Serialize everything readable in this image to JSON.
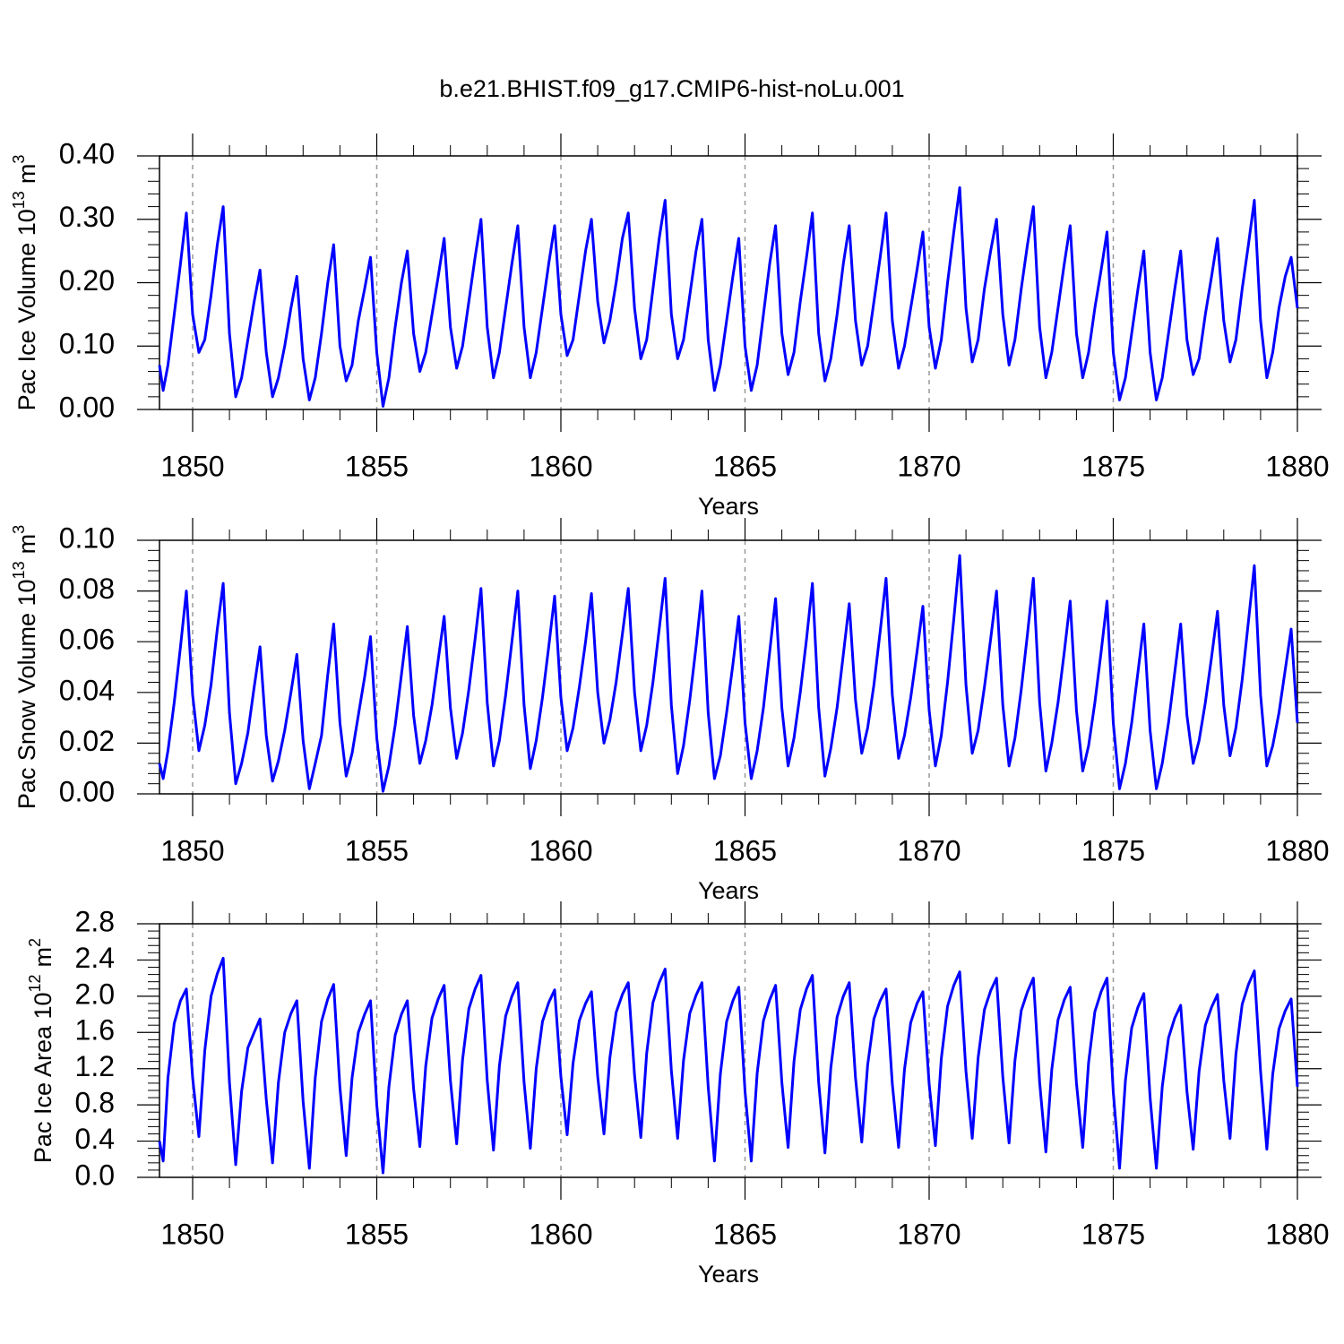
{
  "chart_data": [
    {
      "type": "line",
      "title": "b.e21.BHIST.f09_g17.CMIP6-hist-noLu.001",
      "ylabel": {
        "text": "Pac Ice Volume 10",
        "exp": "13",
        "unit": "m",
        "unit_exp": "3"
      },
      "xlabel": "Years",
      "color": "#0000ff",
      "x": [
        1849.1,
        1849.2,
        1849.33,
        1849.5,
        1849.67,
        1849.83,
        1850,
        1850.17,
        1850.33,
        1850.5,
        1850.67,
        1850.83,
        1851,
        1851.17,
        1851.33,
        1851.5,
        1851.67,
        1851.83,
        1852,
        1852.17,
        1852.33,
        1852.5,
        1852.67,
        1852.83,
        1853,
        1853.17,
        1853.33,
        1853.5,
        1853.67,
        1853.83,
        1854,
        1854.17,
        1854.33,
        1854.5,
        1854.67,
        1854.83,
        1855,
        1855.17,
        1855.33,
        1855.5,
        1855.67,
        1855.83,
        1856,
        1856.17,
        1856.33,
        1856.5,
        1856.67,
        1856.83,
        1857,
        1857.17,
        1857.33,
        1857.5,
        1857.67,
        1857.83,
        1858,
        1858.17,
        1858.33,
        1858.5,
        1858.67,
        1858.83,
        1859,
        1859.17,
        1859.33,
        1859.5,
        1859.67,
        1859.83,
        1860,
        1860.17,
        1860.33,
        1860.5,
        1860.67,
        1860.83,
        1861,
        1861.17,
        1861.33,
        1861.5,
        1861.67,
        1861.83,
        1862,
        1862.17,
        1862.33,
        1862.5,
        1862.67,
        1862.83,
        1863,
        1863.17,
        1863.33,
        1863.5,
        1863.67,
        1863.83,
        1864,
        1864.17,
        1864.33,
        1864.5,
        1864.67,
        1864.83,
        1865,
        1865.17,
        1865.33,
        1865.5,
        1865.67,
        1865.83,
        1866,
        1866.17,
        1866.33,
        1866.5,
        1866.67,
        1866.83,
        1867,
        1867.17,
        1867.33,
        1867.5,
        1867.67,
        1867.83,
        1868,
        1868.17,
        1868.33,
        1868.5,
        1868.67,
        1868.83,
        1869,
        1869.17,
        1869.33,
        1869.5,
        1869.67,
        1869.83,
        1870,
        1870.17,
        1870.33,
        1870.5,
        1870.67,
        1870.83,
        1871,
        1871.17,
        1871.33,
        1871.5,
        1871.67,
        1871.83,
        1872,
        1872.17,
        1872.33,
        1872.5,
        1872.67,
        1872.83,
        1873,
        1873.17,
        1873.33,
        1873.5,
        1873.67,
        1873.83,
        1874,
        1874.17,
        1874.33,
        1874.5,
        1874.67,
        1874.83,
        1875,
        1875.17,
        1875.33,
        1875.5,
        1875.67,
        1875.83,
        1876,
        1876.17,
        1876.33,
        1876.5,
        1876.67,
        1876.83,
        1877,
        1877.17,
        1877.33,
        1877.5,
        1877.67,
        1877.83,
        1878,
        1878.17,
        1878.33,
        1878.5,
        1878.67,
        1878.83,
        1879,
        1879.17,
        1879.33,
        1879.5,
        1879.67,
        1879.83,
        1880
      ],
      "values": [
        0.07,
        0.03,
        0.07,
        0.15,
        0.23,
        0.31,
        0.15,
        0.09,
        0.11,
        0.18,
        0.26,
        0.32,
        0.12,
        0.02,
        0.05,
        0.11,
        0.17,
        0.22,
        0.09,
        0.02,
        0.05,
        0.1,
        0.16,
        0.21,
        0.08,
        0.015,
        0.05,
        0.12,
        0.2,
        0.26,
        0.1,
        0.045,
        0.07,
        0.14,
        0.19,
        0.24,
        0.09,
        0.005,
        0.05,
        0.13,
        0.2,
        0.25,
        0.12,
        0.06,
        0.09,
        0.15,
        0.21,
        0.27,
        0.13,
        0.065,
        0.1,
        0.17,
        0.24,
        0.3,
        0.13,
        0.05,
        0.09,
        0.16,
        0.23,
        0.29,
        0.13,
        0.05,
        0.09,
        0.16,
        0.23,
        0.29,
        0.15,
        0.085,
        0.11,
        0.18,
        0.25,
        0.3,
        0.17,
        0.105,
        0.14,
        0.2,
        0.27,
        0.31,
        0.16,
        0.08,
        0.11,
        0.19,
        0.27,
        0.33,
        0.15,
        0.08,
        0.11,
        0.18,
        0.25,
        0.3,
        0.11,
        0.03,
        0.07,
        0.14,
        0.21,
        0.27,
        0.1,
        0.03,
        0.07,
        0.15,
        0.23,
        0.29,
        0.12,
        0.055,
        0.09,
        0.17,
        0.24,
        0.31,
        0.12,
        0.045,
        0.08,
        0.15,
        0.23,
        0.29,
        0.14,
        0.07,
        0.1,
        0.17,
        0.24,
        0.31,
        0.14,
        0.065,
        0.1,
        0.16,
        0.22,
        0.28,
        0.13,
        0.065,
        0.11,
        0.2,
        0.28,
        0.35,
        0.16,
        0.075,
        0.11,
        0.19,
        0.25,
        0.3,
        0.15,
        0.07,
        0.11,
        0.19,
        0.26,
        0.32,
        0.13,
        0.05,
        0.09,
        0.16,
        0.23,
        0.29,
        0.12,
        0.05,
        0.09,
        0.16,
        0.22,
        0.28,
        0.09,
        0.015,
        0.05,
        0.12,
        0.19,
        0.25,
        0.09,
        0.015,
        0.05,
        0.12,
        0.19,
        0.25,
        0.11,
        0.055,
        0.08,
        0.15,
        0.21,
        0.27,
        0.14,
        0.075,
        0.11,
        0.19,
        0.26,
        0.33,
        0.14,
        0.05,
        0.09,
        0.16,
        0.21,
        0.24,
        0.16
      ],
      "xlim": [
        1849.1,
        1880
      ],
      "xticks": [
        1850,
        1855,
        1860,
        1865,
        1870,
        1875,
        1880
      ],
      "ylim": [
        0,
        0.4
      ],
      "yticks": [
        {
          "value": 0,
          "label": "0.00"
        },
        {
          "value": 0.1,
          "label": "0.10"
        },
        {
          "value": 0.2,
          "label": "0.20"
        },
        {
          "value": 0.3,
          "label": "0.30"
        },
        {
          "value": 0.4,
          "label": "0.40"
        }
      ],
      "grid": true
    },
    {
      "type": "line",
      "ylabel": {
        "text": "Pac Snow Volume 10",
        "exp": "13",
        "unit": "m",
        "unit_exp": "3"
      },
      "xlabel": "Years",
      "color": "#0000ff",
      "x": [
        1849.1,
        1849.2,
        1849.33,
        1849.5,
        1849.67,
        1849.83,
        1850,
        1850.17,
        1850.33,
        1850.5,
        1850.67,
        1850.83,
        1851,
        1851.17,
        1851.33,
        1851.5,
        1851.67,
        1851.83,
        1852,
        1852.17,
        1852.33,
        1852.5,
        1852.67,
        1852.83,
        1853,
        1853.17,
        1853.33,
        1853.5,
        1853.67,
        1853.83,
        1854,
        1854.17,
        1854.33,
        1854.5,
        1854.67,
        1854.83,
        1855,
        1855.17,
        1855.33,
        1855.5,
        1855.67,
        1855.83,
        1856,
        1856.17,
        1856.33,
        1856.5,
        1856.67,
        1856.83,
        1857,
        1857.17,
        1857.33,
        1857.5,
        1857.67,
        1857.83,
        1858,
        1858.17,
        1858.33,
        1858.5,
        1858.67,
        1858.83,
        1859,
        1859.17,
        1859.33,
        1859.5,
        1859.67,
        1859.83,
        1860,
        1860.17,
        1860.33,
        1860.5,
        1860.67,
        1860.83,
        1861,
        1861.17,
        1861.33,
        1861.5,
        1861.67,
        1861.83,
        1862,
        1862.17,
        1862.33,
        1862.5,
        1862.67,
        1862.83,
        1863,
        1863.17,
        1863.33,
        1863.5,
        1863.67,
        1863.83,
        1864,
        1864.17,
        1864.33,
        1864.5,
        1864.67,
        1864.83,
        1865,
        1865.17,
        1865.33,
        1865.5,
        1865.67,
        1865.83,
        1866,
        1866.17,
        1866.33,
        1866.5,
        1866.67,
        1866.83,
        1867,
        1867.17,
        1867.33,
        1867.5,
        1867.67,
        1867.83,
        1868,
        1868.17,
        1868.33,
        1868.5,
        1868.67,
        1868.83,
        1869,
        1869.17,
        1869.33,
        1869.5,
        1869.67,
        1869.83,
        1870,
        1870.17,
        1870.33,
        1870.5,
        1870.67,
        1870.83,
        1871,
        1871.17,
        1871.33,
        1871.5,
        1871.67,
        1871.83,
        1872,
        1872.17,
        1872.33,
        1872.5,
        1872.67,
        1872.83,
        1873,
        1873.17,
        1873.33,
        1873.5,
        1873.67,
        1873.83,
        1874,
        1874.17,
        1874.33,
        1874.5,
        1874.67,
        1874.83,
        1875,
        1875.17,
        1875.33,
        1875.5,
        1875.67,
        1875.83,
        1876,
        1876.17,
        1876.33,
        1876.5,
        1876.67,
        1876.83,
        1877,
        1877.17,
        1877.33,
        1877.5,
        1877.67,
        1877.83,
        1878,
        1878.17,
        1878.33,
        1878.5,
        1878.67,
        1878.83,
        1879,
        1879.17,
        1879.33,
        1879.5,
        1879.67,
        1879.83,
        1880
      ],
      "values": [
        0.012,
        0.006,
        0.017,
        0.036,
        0.058,
        0.08,
        0.039,
        0.017,
        0.027,
        0.043,
        0.065,
        0.083,
        0.032,
        0.004,
        0.012,
        0.024,
        0.042,
        0.058,
        0.023,
        0.005,
        0.013,
        0.025,
        0.04,
        0.055,
        0.021,
        0.002,
        0.012,
        0.023,
        0.047,
        0.067,
        0.028,
        0.007,
        0.016,
        0.031,
        0.046,
        0.062,
        0.022,
        0.001,
        0.011,
        0.027,
        0.047,
        0.066,
        0.031,
        0.012,
        0.021,
        0.035,
        0.053,
        0.07,
        0.034,
        0.014,
        0.024,
        0.041,
        0.061,
        0.081,
        0.036,
        0.011,
        0.021,
        0.039,
        0.06,
        0.08,
        0.035,
        0.01,
        0.021,
        0.038,
        0.058,
        0.078,
        0.038,
        0.017,
        0.026,
        0.042,
        0.06,
        0.079,
        0.04,
        0.02,
        0.029,
        0.044,
        0.063,
        0.081,
        0.04,
        0.017,
        0.027,
        0.044,
        0.065,
        0.085,
        0.035,
        0.008,
        0.019,
        0.037,
        0.058,
        0.08,
        0.032,
        0.006,
        0.015,
        0.032,
        0.051,
        0.07,
        0.028,
        0.006,
        0.017,
        0.034,
        0.056,
        0.077,
        0.034,
        0.011,
        0.022,
        0.04,
        0.061,
        0.083,
        0.034,
        0.007,
        0.018,
        0.034,
        0.055,
        0.075,
        0.037,
        0.016,
        0.026,
        0.043,
        0.064,
        0.085,
        0.039,
        0.014,
        0.023,
        0.038,
        0.056,
        0.074,
        0.033,
        0.011,
        0.023,
        0.044,
        0.069,
        0.094,
        0.043,
        0.016,
        0.025,
        0.042,
        0.061,
        0.08,
        0.035,
        0.011,
        0.022,
        0.041,
        0.063,
        0.085,
        0.036,
        0.009,
        0.02,
        0.036,
        0.056,
        0.076,
        0.033,
        0.009,
        0.019,
        0.036,
        0.056,
        0.076,
        0.028,
        0.002,
        0.012,
        0.028,
        0.048,
        0.067,
        0.025,
        0.002,
        0.012,
        0.028,
        0.048,
        0.067,
        0.031,
        0.012,
        0.021,
        0.036,
        0.054,
        0.072,
        0.035,
        0.015,
        0.026,
        0.045,
        0.068,
        0.09,
        0.039,
        0.011,
        0.019,
        0.032,
        0.049,
        0.065,
        0.028
      ],
      "xlim": [
        1849.1,
        1880
      ],
      "xticks": [
        1850,
        1855,
        1860,
        1865,
        1870,
        1875,
        1880
      ],
      "ylim": [
        0,
        0.1
      ],
      "yticks": [
        {
          "value": 0,
          "label": "0.00"
        },
        0.02,
        0.04,
        0.06,
        0.08,
        {
          "value": 0.1,
          "label": "0.10"
        }
      ],
      "grid": true
    },
    {
      "type": "line",
      "ylabel": {
        "text": "Pac Ice Area 10",
        "exp": "12",
        "unit": "m",
        "unit_exp": "2"
      },
      "xlabel": "Years",
      "color": "#0000ff",
      "x": [
        1849.1,
        1849.2,
        1849.33,
        1849.5,
        1849.67,
        1849.83,
        1850,
        1850.17,
        1850.33,
        1850.5,
        1850.67,
        1850.83,
        1851,
        1851.17,
        1851.33,
        1851.5,
        1851.67,
        1851.83,
        1852,
        1852.17,
        1852.33,
        1852.5,
        1852.67,
        1852.83,
        1853,
        1853.17,
        1853.33,
        1853.5,
        1853.67,
        1853.83,
        1854,
        1854.17,
        1854.33,
        1854.5,
        1854.67,
        1854.83,
        1855,
        1855.17,
        1855.33,
        1855.5,
        1855.67,
        1855.83,
        1856,
        1856.17,
        1856.33,
        1856.5,
        1856.67,
        1856.83,
        1857,
        1857.17,
        1857.33,
        1857.5,
        1857.67,
        1857.83,
        1858,
        1858.17,
        1858.33,
        1858.5,
        1858.67,
        1858.83,
        1859,
        1859.17,
        1859.33,
        1859.5,
        1859.67,
        1859.83,
        1860,
        1860.17,
        1860.33,
        1860.5,
        1860.67,
        1860.83,
        1861,
        1861.17,
        1861.33,
        1861.5,
        1861.67,
        1861.83,
        1862,
        1862.17,
        1862.33,
        1862.5,
        1862.67,
        1862.83,
        1863,
        1863.17,
        1863.33,
        1863.5,
        1863.67,
        1863.83,
        1864,
        1864.17,
        1864.33,
        1864.5,
        1864.67,
        1864.83,
        1865,
        1865.17,
        1865.33,
        1865.5,
        1865.67,
        1865.83,
        1866,
        1866.17,
        1866.33,
        1866.5,
        1866.67,
        1866.83,
        1867,
        1867.17,
        1867.33,
        1867.5,
        1867.67,
        1867.83,
        1868,
        1868.17,
        1868.33,
        1868.5,
        1868.67,
        1868.83,
        1869,
        1869.17,
        1869.33,
        1869.5,
        1869.67,
        1869.83,
        1870,
        1870.17,
        1870.33,
        1870.5,
        1870.67,
        1870.83,
        1871,
        1871.17,
        1871.33,
        1871.5,
        1871.67,
        1871.83,
        1872,
        1872.17,
        1872.33,
        1872.5,
        1872.67,
        1872.83,
        1873,
        1873.17,
        1873.33,
        1873.5,
        1873.67,
        1873.83,
        1874,
        1874.17,
        1874.33,
        1874.5,
        1874.67,
        1874.83,
        1875,
        1875.17,
        1875.33,
        1875.5,
        1875.67,
        1875.83,
        1876,
        1876.17,
        1876.33,
        1876.5,
        1876.67,
        1876.83,
        1877,
        1877.17,
        1877.33,
        1877.5,
        1877.67,
        1877.83,
        1878,
        1878.17,
        1878.33,
        1878.5,
        1878.67,
        1878.83,
        1879,
        1879.17,
        1879.33,
        1879.5,
        1879.67,
        1879.83,
        1880
      ],
      "values": [
        0.4,
        0.18,
        1.1,
        1.7,
        1.95,
        2.08,
        1.1,
        0.45,
        1.4,
        2.0,
        2.25,
        2.42,
        1.05,
        0.14,
        0.95,
        1.43,
        1.6,
        1.75,
        0.86,
        0.16,
        1.05,
        1.6,
        1.81,
        1.95,
        0.84,
        0.1,
        1.1,
        1.72,
        1.97,
        2.13,
        0.99,
        0.24,
        1.1,
        1.6,
        1.8,
        1.95,
        0.8,
        0.05,
        1.0,
        1.57,
        1.8,
        1.95,
        0.98,
        0.34,
        1.23,
        1.76,
        1.97,
        2.12,
        1.07,
        0.37,
        1.3,
        1.86,
        2.08,
        2.23,
        1.07,
        0.3,
        1.23,
        1.78,
        2.0,
        2.15,
        1.05,
        0.32,
        1.2,
        1.72,
        1.93,
        2.07,
        1.11,
        0.47,
        1.26,
        1.73,
        1.92,
        2.05,
        1.11,
        0.48,
        1.32,
        1.82,
        2.02,
        2.15,
        1.13,
        0.44,
        1.37,
        1.93,
        2.15,
        2.3,
        1.18,
        0.43,
        1.29,
        1.81,
        2.01,
        2.15,
        1.0,
        0.18,
        1.14,
        1.72,
        1.95,
        2.1,
        0.95,
        0.18,
        1.15,
        1.73,
        1.96,
        2.12,
        1.05,
        0.33,
        1.28,
        1.85,
        2.08,
        2.23,
        1.05,
        0.27,
        1.21,
        1.77,
        2.0,
        2.15,
        1.1,
        0.39,
        1.24,
        1.75,
        1.95,
        2.08,
        1.03,
        0.33,
        1.19,
        1.71,
        1.92,
        2.05,
        1.03,
        0.35,
        1.31,
        1.89,
        2.12,
        2.27,
        1.17,
        0.43,
        1.32,
        1.85,
        2.06,
        2.2,
        1.11,
        0.38,
        1.29,
        1.84,
        2.05,
        2.2,
        1.05,
        0.28,
        1.19,
        1.74,
        1.96,
        2.1,
        1.04,
        0.33,
        1.27,
        1.83,
        2.05,
        2.2,
        0.94,
        0.1,
        1.07,
        1.65,
        1.88,
        2.03,
        0.88,
        0.1,
        1.0,
        1.54,
        1.76,
        1.9,
        0.95,
        0.31,
        1.17,
        1.68,
        1.88,
        2.02,
        1.07,
        0.43,
        1.36,
        1.91,
        2.13,
        2.28,
        1.17,
        0.31,
        1.14,
        1.64,
        1.84,
        1.97,
        1.0
      ],
      "xlim": [
        1849.1,
        1880
      ],
      "xticks": [
        1850,
        1855,
        1860,
        1865,
        1870,
        1875,
        1880
      ],
      "ylim": [
        0,
        2.8
      ],
      "yticks": [
        {
          "value": 0,
          "label": "0.0"
        },
        0.4,
        0.8,
        1.2,
        1.6,
        {
          "value": 2,
          "label": "2.0"
        },
        2.4,
        2.8
      ],
      "grid": true
    }
  ]
}
